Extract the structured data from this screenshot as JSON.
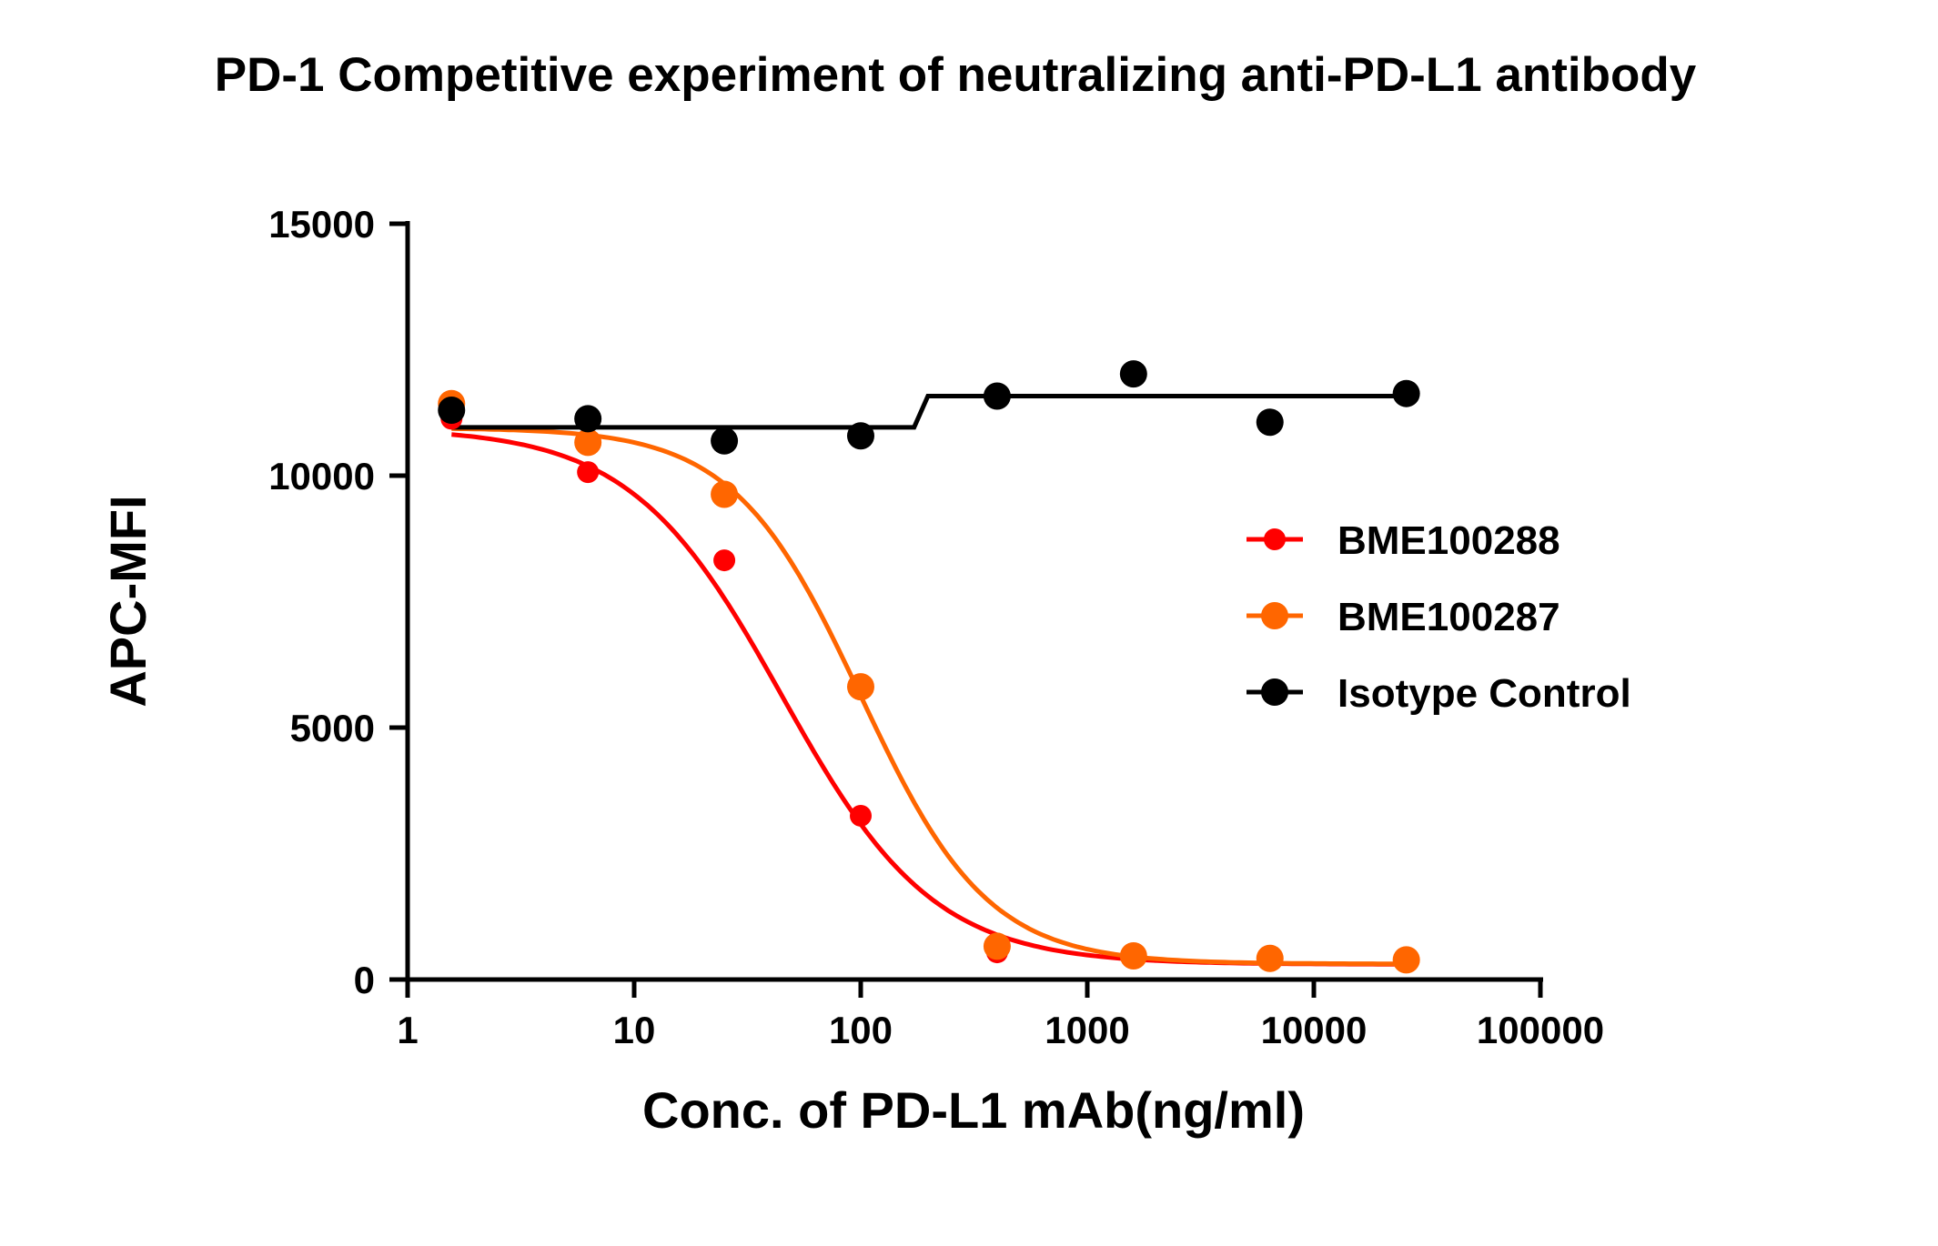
{
  "chart_data": {
    "type": "scatter",
    "title": "PD-1 Competitive experiment of neutralizing anti-PD-L1 antibody",
    "xlabel": "Conc. of PD-L1 mAb(ng/ml)",
    "ylabel": "APC-MFI",
    "xscale": "log",
    "xlim": [
      1,
      100000
    ],
    "ylim": [
      0,
      15000
    ],
    "xticks": [
      "1",
      "10",
      "100",
      "1000",
      "10000",
      "100000"
    ],
    "yticks": [
      "0",
      "5000",
      "10000",
      "15000"
    ],
    "grid": false,
    "legend_position": "right",
    "x": [
      1.5625,
      6.25,
      25,
      100,
      400,
      1600,
      6400,
      25600
    ],
    "series": [
      {
        "name": "BME100288",
        "color": "#ff0000",
        "values": [
          11130,
          10070,
          8320,
          3250,
          540,
          440,
          390,
          390
        ],
        "fit": {
          "top": 10950,
          "bottom": 300,
          "ic50": 45,
          "hill": 1.3
        }
      },
      {
        "name": "BME100287",
        "color": "#ff6600",
        "values": [
          11430,
          10660,
          9630,
          5810,
          660,
          470,
          420,
          390
        ],
        "fit": {
          "top": 10950,
          "bottom": 310,
          "ic50": 100,
          "hill": 1.55
        }
      },
      {
        "name": "Isotype Control",
        "color": "#000000",
        "values": [
          11300,
          11130,
          10690,
          10790,
          11580,
          12020,
          11060,
          11630
        ],
        "fit": {
          "low": 10960,
          "high": 11580,
          "step_at": 185
        }
      }
    ]
  }
}
